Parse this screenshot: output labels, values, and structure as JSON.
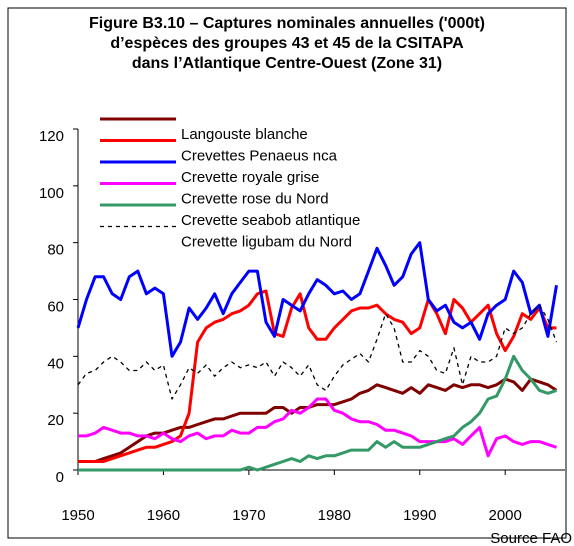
{
  "chart_data": {
    "type": "line",
    "title": [
      "Figure B3.10 – Captures nominales annuelles ('000t)",
      "d’espèces des groupes 43 et 45 de la CSITAPA",
      "dans l’Atlantique Centre-Ouest (Zone 31)"
    ],
    "source": "Source FAO",
    "x": [
      1950,
      1951,
      1952,
      1953,
      1954,
      1955,
      1956,
      1957,
      1958,
      1959,
      1960,
      1961,
      1962,
      1963,
      1964,
      1965,
      1966,
      1967,
      1968,
      1969,
      1970,
      1971,
      1972,
      1973,
      1974,
      1975,
      1976,
      1977,
      1978,
      1979,
      1980,
      1981,
      1982,
      1983,
      1984,
      1985,
      1986,
      1987,
      1988,
      1989,
      1990,
      1991,
      1992,
      1993,
      1994,
      1995,
      1996,
      1997,
      1998,
      1999,
      2000,
      2001,
      2002,
      2003,
      2004,
      2005,
      2006
    ],
    "xlim": [
      1950,
      2007
    ],
    "xticks": [
      1950,
      1960,
      1970,
      1980,
      1990,
      2000
    ],
    "ylim": [
      0,
      120
    ],
    "yticks": [
      0,
      20,
      40,
      60,
      80,
      100,
      120
    ],
    "series": [
      {
        "name": "Langouste blanche",
        "color": "#800000",
        "dashed": false,
        "values": [
          3,
          3,
          3,
          4,
          5,
          6,
          8,
          10,
          12,
          13,
          13,
          14,
          15,
          15,
          16,
          17,
          18,
          18,
          19,
          20,
          20,
          20,
          20,
          22,
          22,
          20,
          22,
          22,
          23,
          23,
          23,
          24,
          25,
          27,
          28,
          30,
          29,
          28,
          27,
          29,
          27,
          30,
          29,
          28,
          30,
          29,
          30,
          30,
          29,
          30,
          32,
          31,
          28,
          32,
          31,
          30,
          28
        ]
      },
      {
        "name": "Crevettes Penaeus nca",
        "color": "#ff0000",
        "dashed": false,
        "values": [
          3,
          3,
          3,
          3,
          4,
          5,
          6,
          7,
          8,
          8,
          9,
          10,
          12,
          20,
          45,
          50,
          52,
          53,
          55,
          56,
          58,
          62,
          63,
          48,
          47,
          57,
          62,
          50,
          46,
          46,
          50,
          53,
          56,
          57,
          57,
          58,
          55,
          53,
          52,
          48,
          50,
          60,
          55,
          48,
          60,
          57,
          52,
          55,
          58,
          48,
          42,
          47,
          55,
          53,
          57,
          50,
          50
        ]
      },
      {
        "name": "Crevette royale grise",
        "color": "#0000ff",
        "dashed": false,
        "values": [
          50,
          60,
          68,
          68,
          62,
          60,
          68,
          70,
          62,
          64,
          62,
          40,
          45,
          57,
          53,
          57,
          62,
          55,
          62,
          66,
          70,
          70,
          52,
          47,
          60,
          58,
          56,
          62,
          67,
          65,
          62,
          63,
          60,
          62,
          70,
          78,
          72,
          65,
          68,
          76,
          80,
          60,
          56,
          58,
          52,
          50,
          52,
          46,
          55,
          58,
          60,
          70,
          66,
          55,
          58,
          47,
          65
        ]
      },
      {
        "name": "Crevette rose du Nord",
        "color": "#ff00ff",
        "dashed": false,
        "values": [
          12,
          12,
          13,
          15,
          14,
          13,
          13,
          12,
          12,
          11,
          13,
          11,
          10,
          12,
          13,
          11,
          12,
          12,
          14,
          13,
          13,
          15,
          15,
          17,
          18,
          21,
          20,
          22,
          25,
          25,
          21,
          20,
          18,
          17,
          17,
          16,
          14,
          14,
          13,
          12,
          10,
          10,
          10,
          10,
          11,
          9,
          12,
          15,
          5,
          11,
          12,
          10,
          9,
          10,
          10,
          9,
          8
        ]
      },
      {
        "name": "Crevette seabob atlantique",
        "color": "#339966",
        "dashed": false,
        "values": [
          0,
          0,
          0,
          0,
          0,
          0,
          0,
          0,
          0,
          0,
          0,
          0,
          0,
          0,
          0,
          0,
          0,
          0,
          0,
          0,
          1,
          0,
          1,
          2,
          3,
          4,
          3,
          5,
          4,
          5,
          5,
          6,
          7,
          7,
          7,
          10,
          8,
          10,
          8,
          8,
          8,
          9,
          10,
          11,
          12,
          15,
          17,
          20,
          25,
          26,
          32,
          40,
          35,
          32,
          28,
          27,
          28
        ]
      },
      {
        "name": "Crevette ligubam du Nord",
        "color": "#000000",
        "dashed": true,
        "values": [
          30,
          34,
          35,
          38,
          40,
          38,
          35,
          35,
          38,
          35,
          37,
          25,
          30,
          36,
          34,
          37,
          33,
          36,
          38,
          36,
          37,
          36,
          38,
          33,
          38,
          36,
          33,
          37,
          30,
          28,
          33,
          37,
          39,
          41,
          38,
          46,
          55,
          50,
          38,
          38,
          42,
          40,
          35,
          34,
          43,
          30,
          40,
          38,
          38,
          40,
          50,
          48,
          50,
          55,
          58,
          53,
          45
        ]
      }
    ]
  }
}
